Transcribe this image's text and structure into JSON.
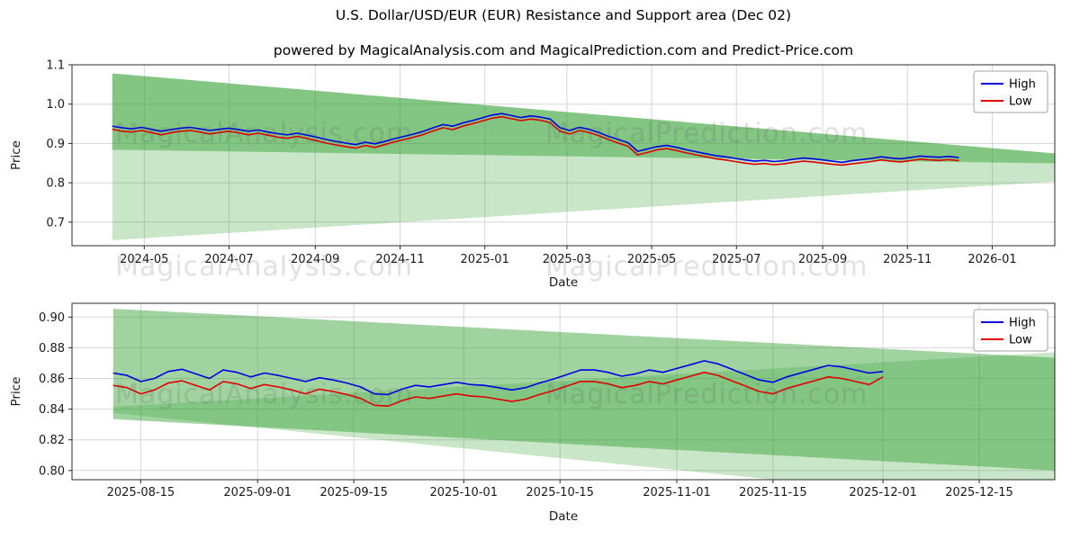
{
  "watermarks": {
    "left": "MagicalAnalysis.com",
    "right": "MagicalPrediction.com"
  },
  "colors": {
    "high": "#0000e0",
    "low": "#e00000",
    "band": "#2e9e2e",
    "grid": "#d6d6d6",
    "spine": "#2b2b2b",
    "tick_text": "#1a1a1a",
    "legend_border": "#a6a6a6",
    "legend_bg": "#ffffff"
  },
  "chart_data": [
    {
      "type": "line",
      "title": "U.S. Dollar/USD/EUR (EUR) Resistance and Support area (Dec 02)",
      "subtitle": "powered by MagicalAnalysis.com and MagicalPrediction.com and Predict-Price.com",
      "xlabel": "Date",
      "ylabel": "Price",
      "grid": true,
      "legend_position": "upper right",
      "x_range": [
        "2024-03-10",
        "2026-02-15"
      ],
      "ylim": [
        0.64,
        1.1
      ],
      "yticks": [
        0.7,
        0.8,
        0.9,
        1.0,
        1.1
      ],
      "ytick_labels": [
        "0.7",
        "0.8",
        "0.9",
        "1.0",
        "1.1"
      ],
      "xticks": [
        "2024-05-01",
        "2024-07-01",
        "2024-09-01",
        "2024-11-01",
        "2025-01-01",
        "2025-03-01",
        "2025-05-01",
        "2025-07-01",
        "2025-09-01",
        "2025-11-01",
        "2026-01-01"
      ],
      "xtick_labels": [
        "2024-05",
        "2024-07",
        "2024-09",
        "2024-11",
        "2025-01",
        "2025-03",
        "2025-05",
        "2025-07",
        "2025-09",
        "2025-11",
        "2026-01"
      ],
      "legend": [
        {
          "label": "High",
          "color": "#0000e0"
        },
        {
          "label": "Low",
          "color": "#e00000"
        }
      ],
      "bands": [
        {
          "name": "support-area",
          "color": "#2e9e2e",
          "opacity": 0.26,
          "points": [
            [
              "2024-04-08",
              1.078
            ],
            [
              "2026-02-15",
              0.8745
            ],
            [
              "2026-02-15",
              0.803
            ],
            [
              "2024-04-08",
              0.654
            ]
          ]
        },
        {
          "name": "resistance-area",
          "color": "#2e9e2e",
          "opacity": 0.45,
          "points": [
            [
              "2024-04-08",
              1.078
            ],
            [
              "2026-02-15",
              0.8745
            ],
            [
              "2026-02-15",
              0.8495
            ],
            [
              "2024-04-08",
              0.884
            ]
          ]
        }
      ],
      "series": [
        {
          "name": "High",
          "color": "#0000e0",
          "x_start": "2024-04-08",
          "x_step_days": 7,
          "values": [
            0.944,
            0.94,
            0.937,
            0.941,
            0.936,
            0.931,
            0.935,
            0.939,
            0.941,
            0.937,
            0.933,
            0.936,
            0.939,
            0.935,
            0.931,
            0.934,
            0.929,
            0.925,
            0.922,
            0.926,
            0.921,
            0.916,
            0.91,
            0.905,
            0.901,
            0.897,
            0.903,
            0.899,
            0.905,
            0.912,
            0.918,
            0.924,
            0.931,
            0.94,
            0.948,
            0.944,
            0.952,
            0.958,
            0.965,
            0.972,
            0.976,
            0.971,
            0.966,
            0.97,
            0.967,
            0.962,
            0.94,
            0.933,
            0.941,
            0.936,
            0.928,
            0.918,
            0.91,
            0.902,
            0.88,
            0.886,
            0.892,
            0.895,
            0.89,
            0.884,
            0.879,
            0.874,
            0.869,
            0.866,
            0.862,
            0.858,
            0.855,
            0.857,
            0.854,
            0.856,
            0.86,
            0.863,
            0.861,
            0.858,
            0.855,
            0.852,
            0.856,
            0.859,
            0.862,
            0.866,
            0.863,
            0.861,
            0.864,
            0.868,
            0.866,
            0.865,
            0.867,
            0.864
          ]
        },
        {
          "name": "Low",
          "color": "#e00000",
          "x_start": "2024-04-08",
          "x_step_days": 7,
          "values": [
            0.936,
            0.931,
            0.929,
            0.933,
            0.928,
            0.922,
            0.927,
            0.931,
            0.933,
            0.929,
            0.924,
            0.928,
            0.931,
            0.927,
            0.922,
            0.926,
            0.921,
            0.916,
            0.913,
            0.918,
            0.913,
            0.907,
            0.901,
            0.896,
            0.892,
            0.888,
            0.895,
            0.89,
            0.897,
            0.904,
            0.91,
            0.916,
            0.923,
            0.932,
            0.94,
            0.935,
            0.944,
            0.95,
            0.957,
            0.964,
            0.968,
            0.963,
            0.958,
            0.962,
            0.959,
            0.953,
            0.931,
            0.924,
            0.933,
            0.928,
            0.92,
            0.91,
            0.901,
            0.893,
            0.871,
            0.877,
            0.884,
            0.887,
            0.882,
            0.876,
            0.871,
            0.866,
            0.861,
            0.858,
            0.854,
            0.85,
            0.847,
            0.849,
            0.846,
            0.848,
            0.852,
            0.855,
            0.853,
            0.85,
            0.847,
            0.845,
            0.848,
            0.851,
            0.854,
            0.858,
            0.855,
            0.853,
            0.856,
            0.86,
            0.858,
            0.857,
            0.859,
            0.856
          ]
        }
      ]
    },
    {
      "type": "line",
      "xlabel": "Date",
      "ylabel": "Price",
      "grid": true,
      "legend_position": "upper right",
      "x_range": [
        "2025-08-05",
        "2025-12-26"
      ],
      "ylim": [
        0.794,
        0.909
      ],
      "yticks": [
        0.8,
        0.82,
        0.84,
        0.86,
        0.88,
        0.9
      ],
      "ytick_labels": [
        "0.80",
        "0.82",
        "0.84",
        "0.86",
        "0.88",
        "0.90"
      ],
      "xticks": [
        "2025-08-15",
        "2025-09-01",
        "2025-09-15",
        "2025-10-01",
        "2025-10-15",
        "2025-11-01",
        "2025-11-15",
        "2025-12-01",
        "2025-12-15"
      ],
      "xtick_labels": [
        "2025-08-15",
        "2025-09-01",
        "2025-09-15",
        "2025-10-01",
        "2025-10-15",
        "2025-11-01",
        "2025-11-15",
        "2025-12-01",
        "2025-12-15"
      ],
      "legend": [
        {
          "label": "High",
          "color": "#0000e0"
        },
        {
          "label": "Low",
          "color": "#e00000"
        }
      ],
      "bands": [
        {
          "name": "resistance-area",
          "color": "#2e9e2e",
          "opacity": 0.45,
          "points": [
            [
              "2025-08-11",
              0.9055
            ],
            [
              "2025-12-26",
              0.8735
            ],
            [
              "2025-12-26",
              0.8
            ],
            [
              "2025-08-11",
              0.8335
            ]
          ]
        },
        {
          "name": "support-area",
          "color": "#2e9e2e",
          "opacity": 0.26,
          "points": [
            [
              "2025-08-11",
              0.8415
            ],
            [
              "2025-12-26",
              0.877
            ],
            [
              "2025-12-26",
              0.7755
            ],
            [
              "2025-08-11",
              0.8375
            ]
          ]
        }
      ],
      "series": [
        {
          "name": "High",
          "color": "#0000e0",
          "x_start": "2025-08-11",
          "x_step_days": 2,
          "values": [
            0.8635,
            0.862,
            0.858,
            0.86,
            0.8645,
            0.866,
            0.863,
            0.86,
            0.8655,
            0.864,
            0.861,
            0.8635,
            0.862,
            0.86,
            0.858,
            0.8605,
            0.859,
            0.857,
            0.8545,
            0.85,
            0.8495,
            0.853,
            0.8555,
            0.8545,
            0.856,
            0.8575,
            0.856,
            0.8555,
            0.854,
            0.8525,
            0.854,
            0.857,
            0.8595,
            0.8625,
            0.8655,
            0.8655,
            0.864,
            0.8615,
            0.863,
            0.8655,
            0.864,
            0.8665,
            0.869,
            0.8715,
            0.8695,
            0.866,
            0.8625,
            0.859,
            0.8575,
            0.861,
            0.8635,
            0.866,
            0.8685,
            0.8675,
            0.8655,
            0.8635,
            0.8645
          ]
        },
        {
          "name": "Low",
          "color": "#e00000",
          "x_start": "2025-08-11",
          "x_step_days": 2,
          "values": [
            0.8555,
            0.854,
            0.85,
            0.8525,
            0.857,
            0.8585,
            0.8555,
            0.8525,
            0.858,
            0.8565,
            0.8535,
            0.856,
            0.8545,
            0.8525,
            0.85,
            0.853,
            0.8515,
            0.8495,
            0.847,
            0.8425,
            0.842,
            0.8455,
            0.848,
            0.847,
            0.8485,
            0.85,
            0.8485,
            0.848,
            0.8465,
            0.845,
            0.8465,
            0.8495,
            0.852,
            0.855,
            0.858,
            0.858,
            0.8565,
            0.854,
            0.8555,
            0.858,
            0.8565,
            0.859,
            0.8615,
            0.864,
            0.862,
            0.8585,
            0.855,
            0.8515,
            0.85,
            0.8535,
            0.856,
            0.8585,
            0.861,
            0.86,
            0.858,
            0.856,
            0.861
          ]
        }
      ]
    }
  ]
}
